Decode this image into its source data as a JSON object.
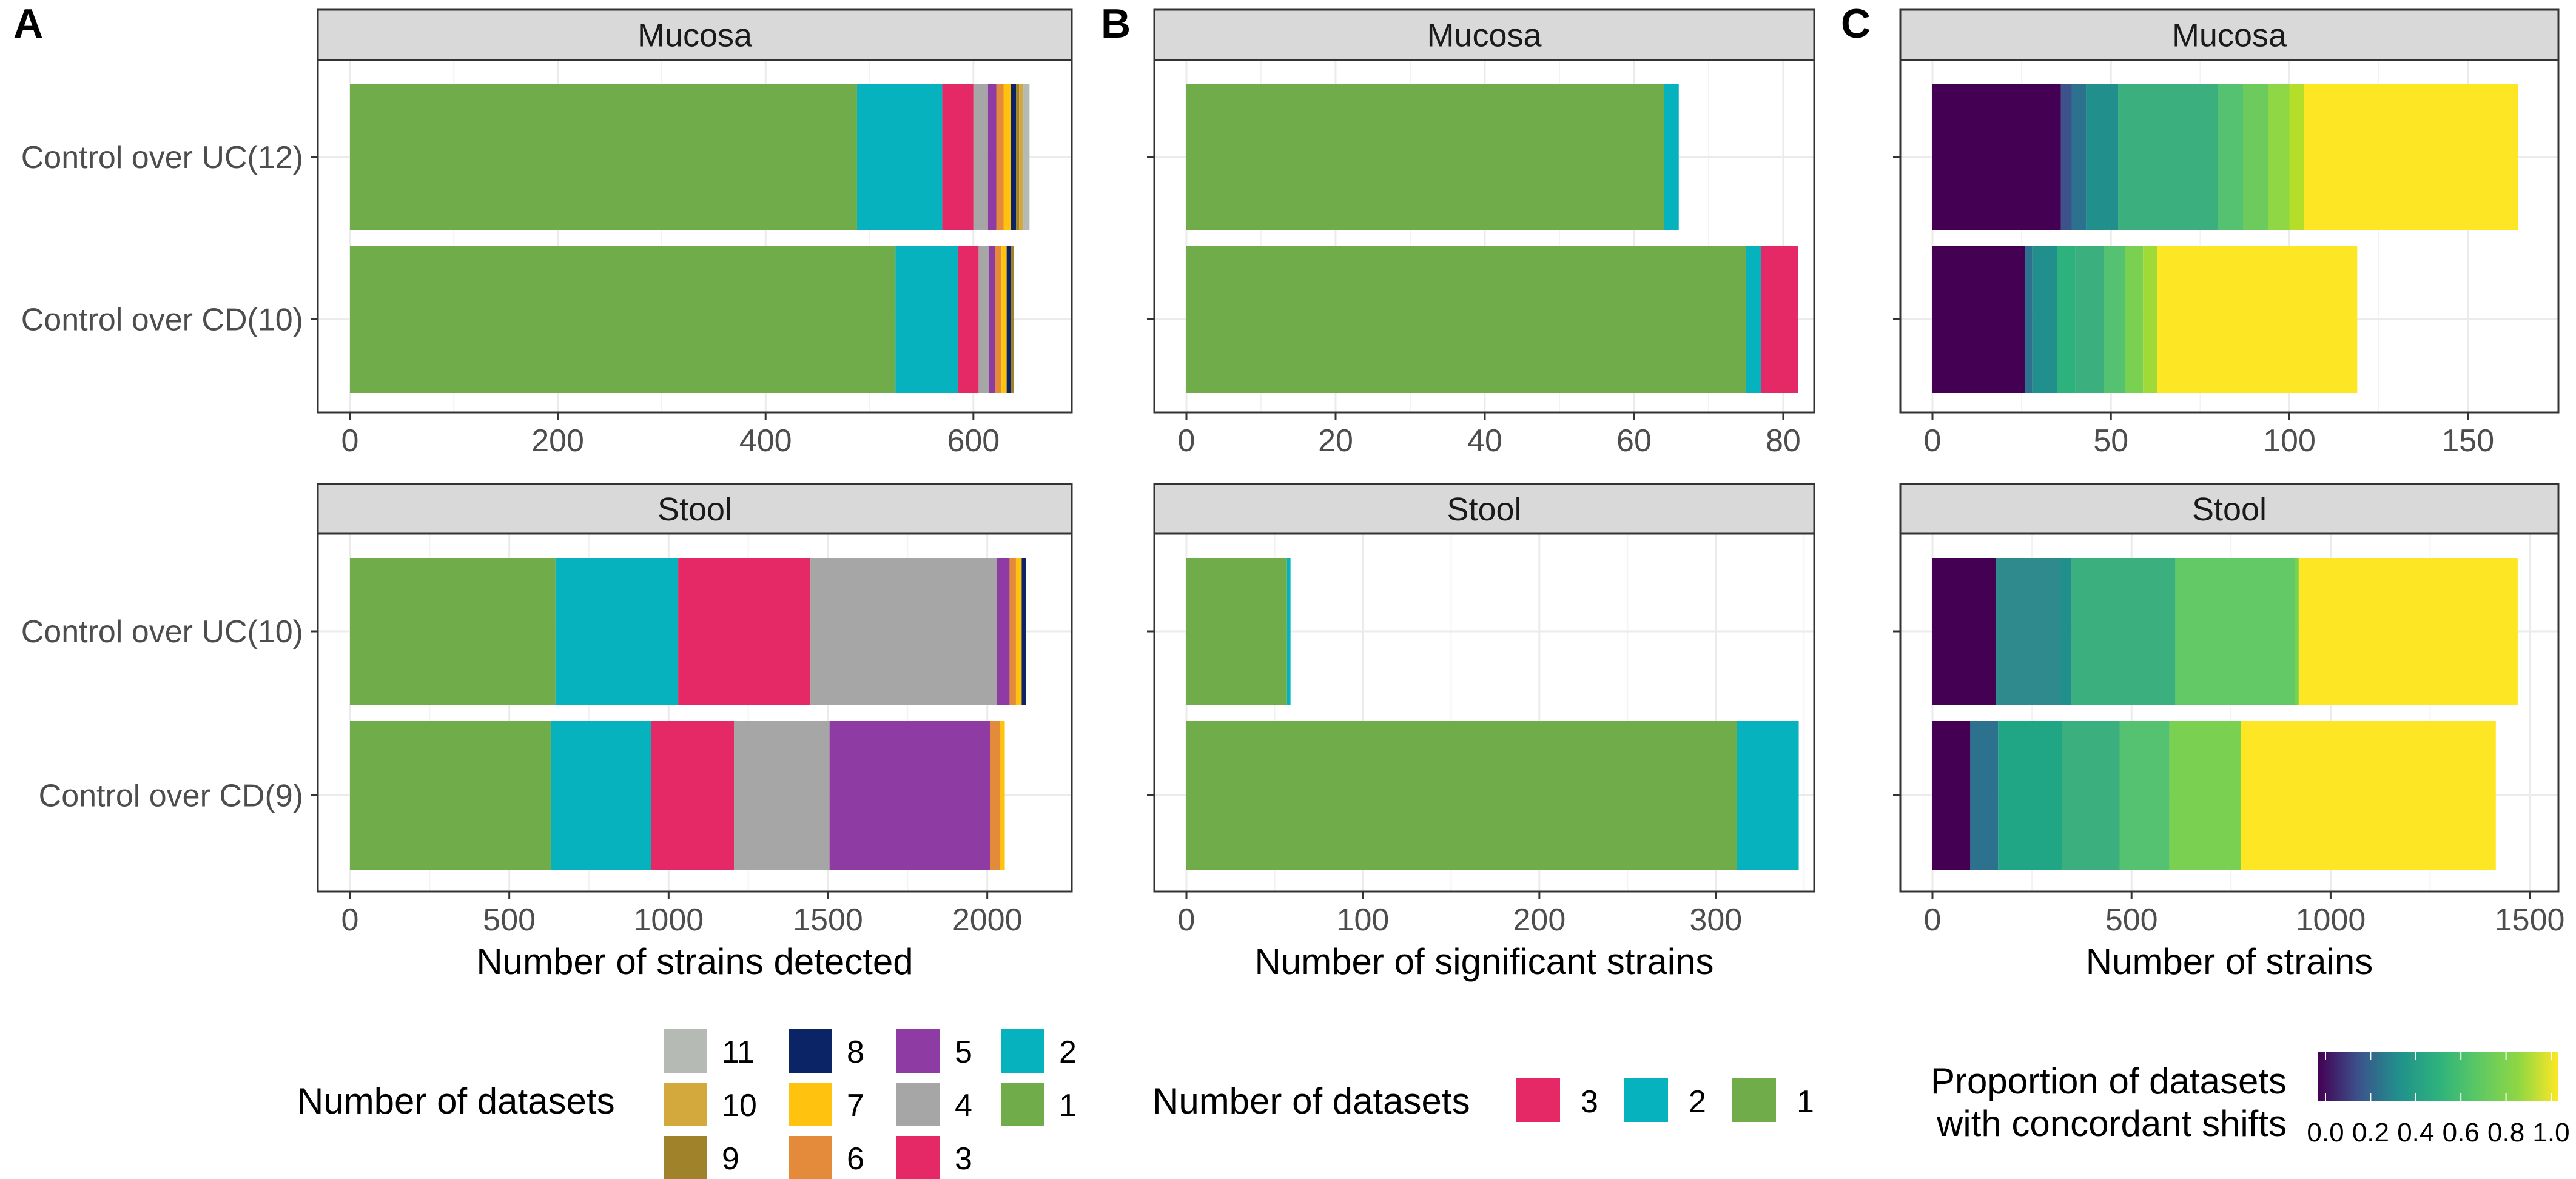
{
  "figure_title": "Stacked bar charts of strain counts by number of datasets",
  "panel_letters": [
    "A",
    "B",
    "C"
  ],
  "legends": {
    "datasets_all": {
      "title": "Number of datasets",
      "entries": [
        {
          "label": "11",
          "color": "#B5BAB5"
        },
        {
          "label": "10",
          "color": "#D3A83C"
        },
        {
          "label": "9",
          "color": "#9F822A"
        },
        {
          "label": "8",
          "color": "#0A2466"
        },
        {
          "label": "7",
          "color": "#FFC20F"
        },
        {
          "label": "6",
          "color": "#E48A3B"
        },
        {
          "label": "5",
          "color": "#8E3BA3"
        },
        {
          "label": "4",
          "color": "#A6A6A6"
        },
        {
          "label": "3",
          "color": "#E52966"
        },
        {
          "label": "2",
          "color": "#06B2BE"
        },
        {
          "label": "1",
          "color": "#71AC4B"
        }
      ]
    },
    "datasets_sig": {
      "title": "Number of datasets",
      "entries": [
        {
          "label": "3",
          "color": "#E52966"
        },
        {
          "label": "2",
          "color": "#06B2BE"
        },
        {
          "label": "1",
          "color": "#71AC4B"
        }
      ]
    },
    "proportion": {
      "title_line1": "Proportion of datasets",
      "title_line2": "with concordant shifts",
      "ticks": [
        "0.0",
        "0.2",
        "0.4",
        "0.6",
        "0.8",
        "1.0"
      ],
      "colors": [
        "#440154",
        "#3B528B",
        "#21908C",
        "#2DB27D",
        "#5DC863",
        "#8FD744",
        "#FDE725"
      ]
    }
  },
  "chart_data": [
    {
      "panel": "A",
      "type": "bar",
      "orientation": "horizontal",
      "stacked": true,
      "xlabel": "Number of strains detected",
      "facets": [
        {
          "strip": "Mucosa",
          "categories": [
            "Control over UC(12)",
            "Control over CD(10)"
          ],
          "xlim": [
            0,
            690
          ],
          "xticks": [
            0,
            200,
            400,
            600
          ],
          "show_x_axis": true,
          "rows": [
            [
              {
                "label": "1",
                "value": 488,
                "color": "#71AC4B"
              },
              {
                "label": "2",
                "value": 82,
                "color": "#06B2BE"
              },
              {
                "label": "3",
                "value": 30,
                "color": "#E52966"
              },
              {
                "label": "4",
                "value": 14,
                "color": "#A6A6A6"
              },
              {
                "label": "5",
                "value": 8,
                "color": "#8E3BA3"
              },
              {
                "label": "6",
                "value": 7,
                "color": "#E48A3B"
              },
              {
                "label": "7",
                "value": 7,
                "color": "#FFC20F"
              },
              {
                "label": "8",
                "value": 5,
                "color": "#0A2466"
              },
              {
                "label": "9",
                "value": 3,
                "color": "#9F822A"
              },
              {
                "label": "10",
                "value": 4,
                "color": "#D3A83C"
              },
              {
                "label": "11",
                "value": 6,
                "color": "#B5BAB5"
              }
            ],
            [
              {
                "label": "1",
                "value": 525,
                "color": "#71AC4B"
              },
              {
                "label": "2",
                "value": 60,
                "color": "#06B2BE"
              },
              {
                "label": "3",
                "value": 20,
                "color": "#E52966"
              },
              {
                "label": "4",
                "value": 10,
                "color": "#A6A6A6"
              },
              {
                "label": "5",
                "value": 6,
                "color": "#8E3BA3"
              },
              {
                "label": "6",
                "value": 6,
                "color": "#E48A3B"
              },
              {
                "label": "7",
                "value": 5,
                "color": "#FFC20F"
              },
              {
                "label": "8",
                "value": 4,
                "color": "#0A2466"
              },
              {
                "label": "9",
                "value": 3,
                "color": "#9F822A"
              }
            ]
          ]
        },
        {
          "strip": "Stool",
          "categories": [
            "Control over UC(10)",
            "Control over CD(9)"
          ],
          "xlim": [
            0,
            2250
          ],
          "xticks": [
            0,
            500,
            1000,
            1500,
            2000
          ],
          "show_x_axis": true,
          "rows": [
            [
              {
                "label": "1",
                "value": 645,
                "color": "#71AC4B"
              },
              {
                "label": "2",
                "value": 385,
                "color": "#06B2BE"
              },
              {
                "label": "3",
                "value": 415,
                "color": "#E52966"
              },
              {
                "label": "4",
                "value": 585,
                "color": "#A6A6A6"
              },
              {
                "label": "5",
                "value": 40,
                "color": "#8E3BA3"
              },
              {
                "label": "6",
                "value": 20,
                "color": "#E48A3B"
              },
              {
                "label": "7",
                "value": 18,
                "color": "#FFC20F"
              },
              {
                "label": "8",
                "value": 14,
                "color": "#0A2466"
              }
            ],
            [
              {
                "label": "1",
                "value": 630,
                "color": "#71AC4B"
              },
              {
                "label": "2",
                "value": 315,
                "color": "#06B2BE"
              },
              {
                "label": "3",
                "value": 260,
                "color": "#E52966"
              },
              {
                "label": "4",
                "value": 300,
                "color": "#A6A6A6"
              },
              {
                "label": "5",
                "value": 505,
                "color": "#8E3BA3"
              },
              {
                "label": "6",
                "value": 30,
                "color": "#E48A3B"
              },
              {
                "label": "7",
                "value": 15,
                "color": "#FFC20F"
              }
            ]
          ]
        }
      ]
    },
    {
      "panel": "B",
      "type": "bar",
      "orientation": "horizontal",
      "stacked": true,
      "xlabel": "Number of significant strains",
      "facets": [
        {
          "strip": "Mucosa",
          "categories": [
            "Control over UC(12)",
            "Control over CD(10)"
          ],
          "xlim": [
            0,
            83.5
          ],
          "xticks": [
            0,
            20,
            40,
            60,
            80
          ],
          "show_x_axis": true,
          "rows": [
            [
              {
                "label": "1",
                "value": 64,
                "color": "#71AC4B"
              },
              {
                "label": "2",
                "value": 2,
                "color": "#06B2BE"
              }
            ],
            [
              {
                "label": "1",
                "value": 75,
                "color": "#71AC4B"
              },
              {
                "label": "2",
                "value": 2,
                "color": "#06B2BE"
              },
              {
                "label": "3",
                "value": 5,
                "color": "#E52966"
              }
            ]
          ]
        },
        {
          "strip": "Stool",
          "categories": [
            "Control over UC(10)",
            "Control over CD(9)"
          ],
          "xlim": [
            0,
            353
          ],
          "xticks": [
            0,
            100,
            200,
            300
          ],
          "show_x_axis": true,
          "rows": [
            [
              {
                "label": "1",
                "value": 57,
                "color": "#71AC4B"
              },
              {
                "label": "2",
                "value": 2,
                "color": "#06B2BE"
              }
            ],
            [
              {
                "label": "1",
                "value": 312,
                "color": "#71AC4B"
              },
              {
                "label": "2",
                "value": 35,
                "color": "#06B2BE"
              }
            ]
          ]
        }
      ]
    },
    {
      "panel": "C",
      "type": "bar",
      "orientation": "horizontal",
      "stacked": true,
      "xlabel": "Number of strains",
      "facets": [
        {
          "strip": "Mucosa",
          "categories": [
            "Control over UC(12)",
            "Control over CD(10)"
          ],
          "xlim": [
            0,
            174
          ],
          "xticks": [
            0,
            50,
            100,
            150
          ],
          "show_x_axis": true,
          "rows": [
            [
              {
                "label": "0.0",
                "value": 36,
                "color": "#440154"
              },
              {
                "label": "0.17",
                "value": 3,
                "color": "#3B528B"
              },
              {
                "label": "0.25",
                "value": 4,
                "color": "#2C728E"
              },
              {
                "label": "0.33",
                "value": 9,
                "color": "#21908C"
              },
              {
                "label": "0.5",
                "value": 28,
                "color": "#3BB07E"
              },
              {
                "label": "0.58",
                "value": 7,
                "color": "#55C272"
              },
              {
                "label": "0.67",
                "value": 7,
                "color": "#6DCB5D"
              },
              {
                "label": "0.75",
                "value": 6,
                "color": "#8FD744"
              },
              {
                "label": "0.83",
                "value": 4,
                "color": "#B5DE2B"
              },
              {
                "label": "1.0",
                "value": 60,
                "color": "#FDE725"
              }
            ],
            [
              {
                "label": "0.0",
                "value": 26,
                "color": "#440154"
              },
              {
                "label": "0.2",
                "value": 2,
                "color": "#2C728E"
              },
              {
                "label": "0.3",
                "value": 7,
                "color": "#21908C"
              },
              {
                "label": "0.4",
                "value": 5,
                "color": "#2DB27D"
              },
              {
                "label": "0.5",
                "value": 8,
                "color": "#3BB07E"
              },
              {
                "label": "0.6",
                "value": 6,
                "color": "#55C272"
              },
              {
                "label": "0.7",
                "value": 5,
                "color": "#7AD151"
              },
              {
                "label": "0.8",
                "value": 4,
                "color": "#A0DA39"
              },
              {
                "label": "1.0",
                "value": 56,
                "color": "#FDE725"
              }
            ]
          ]
        },
        {
          "strip": "Stool",
          "categories": [
            "Control over UC(10)",
            "Control over CD(9)"
          ],
          "xlim": [
            0,
            1560
          ],
          "xticks": [
            0,
            500,
            1000,
            1500
          ],
          "show_x_axis": true,
          "rows": [
            [
              {
                "label": "0.0",
                "value": 160,
                "color": "#440154"
              },
              {
                "label": "0.2",
                "value": 160,
                "color": "#2E8A8C"
              },
              {
                "label": "0.3",
                "value": 30,
                "color": "#21908C"
              },
              {
                "label": "0.5",
                "value": 260,
                "color": "#3BB07E"
              },
              {
                "label": "0.7",
                "value": 300,
                "color": "#63C866"
              },
              {
                "label": "0.8",
                "value": 10,
                "color": "#7AD151"
              },
              {
                "label": "1.0",
                "value": 550,
                "color": "#FDE725"
              }
            ],
            [
              {
                "label": "0.0",
                "value": 95,
                "color": "#440154"
              },
              {
                "label": "0.11",
                "value": 70,
                "color": "#2C728E"
              },
              {
                "label": "0.22",
                "value": 160,
                "color": "#21A685"
              },
              {
                "label": "0.33",
                "value": 145,
                "color": "#3BB07E"
              },
              {
                "label": "0.44",
                "value": 125,
                "color": "#55C272"
              },
              {
                "label": "0.56",
                "value": 180,
                "color": "#7AD151"
              },
              {
                "label": "1.0",
                "value": 640,
                "color": "#FDE725"
              }
            ]
          ]
        }
      ]
    }
  ]
}
